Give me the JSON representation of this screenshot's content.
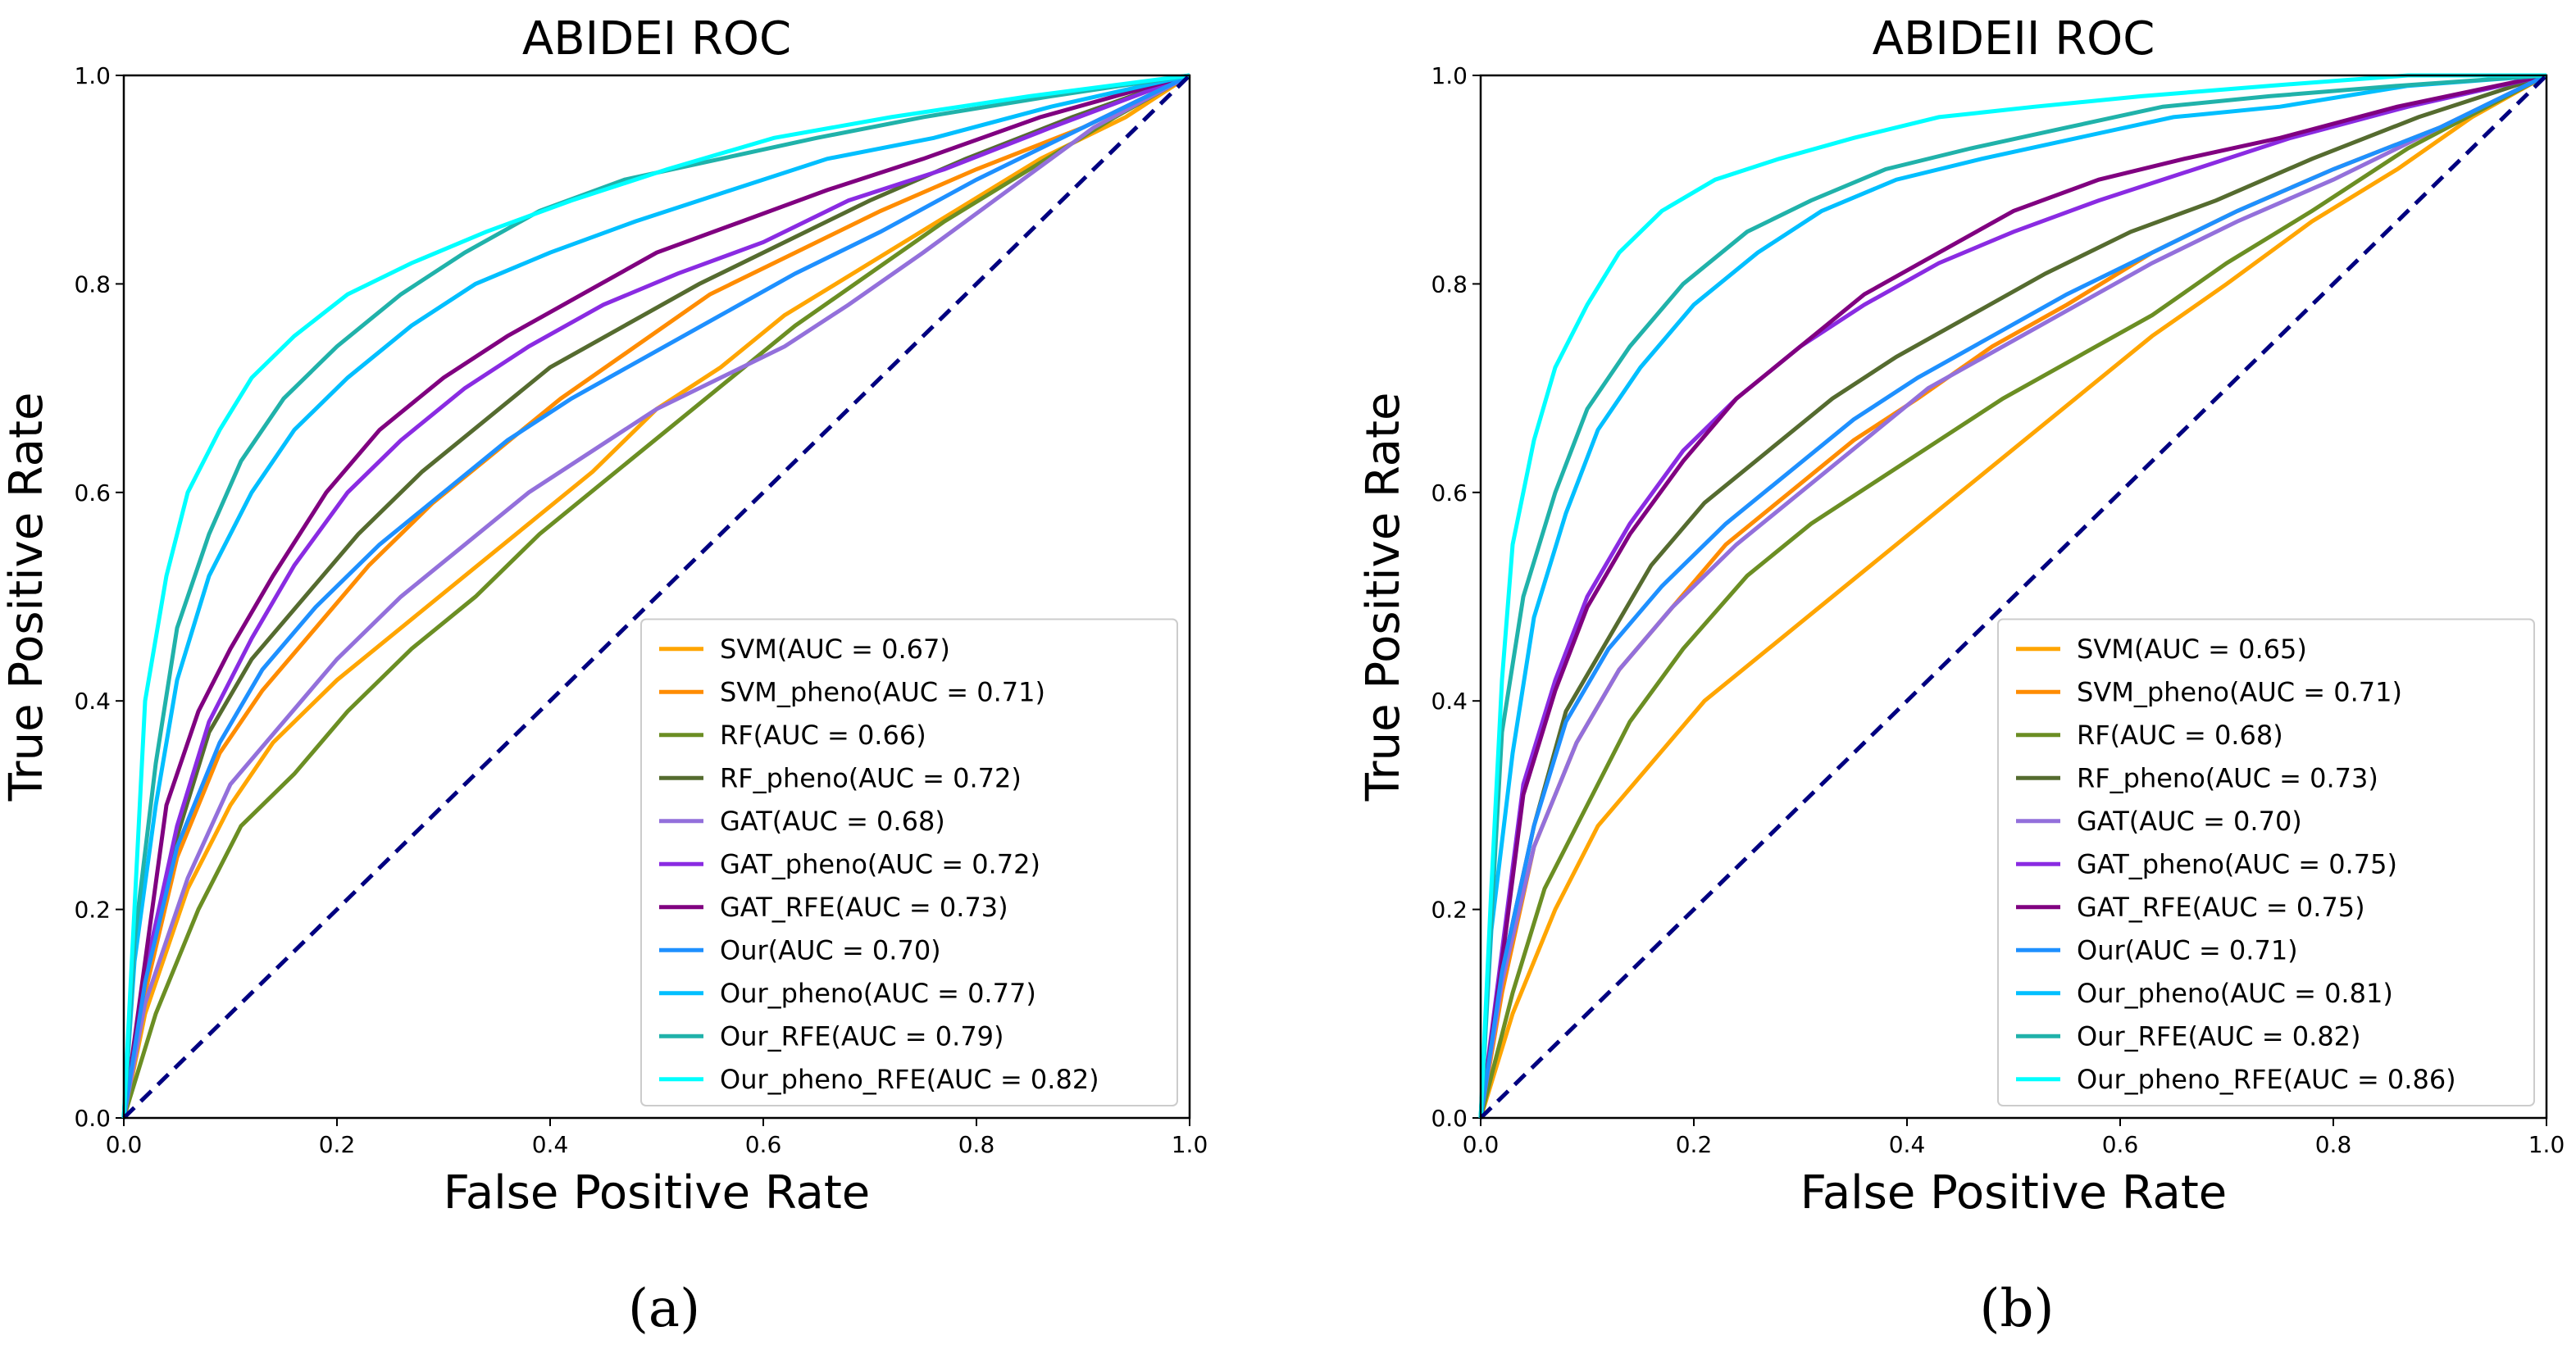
{
  "chart_data": [
    {
      "type": "line",
      "title": "ABIDEI ROC",
      "xlabel": "False Positive Rate",
      "ylabel": "True Positive Rate",
      "xlim": [
        0.0,
        1.0
      ],
      "ylim": [
        0.0,
        1.0
      ],
      "xticks": [
        "0.0",
        "0.2",
        "0.4",
        "0.6",
        "0.8",
        "1.0"
      ],
      "yticks": [
        "0.0",
        "0.2",
        "0.4",
        "0.6",
        "0.8",
        "1.0"
      ],
      "grid": false,
      "legend_position": "lower-right",
      "caption": "(a)",
      "chance_line": {
        "x": [
          0,
          1
        ],
        "y": [
          0,
          1
        ],
        "color": "#000080",
        "style": "dashed"
      },
      "series": [
        {
          "name": "SVM(AUC = 0.67)",
          "color": "#ffa500",
          "x": [
            0,
            0.02,
            0.06,
            0.1,
            0.14,
            0.2,
            0.26,
            0.32,
            0.38,
            0.44,
            0.5,
            0.56,
            0.62,
            0.7,
            0.78,
            0.86,
            0.94,
            1.0
          ],
          "y": [
            0,
            0.1,
            0.22,
            0.3,
            0.36,
            0.42,
            0.47,
            0.52,
            0.57,
            0.62,
            0.68,
            0.72,
            0.77,
            0.82,
            0.87,
            0.92,
            0.96,
            1.0
          ]
        },
        {
          "name": "SVM_pheno(AUC = 0.71)",
          "color": "#ff8c00",
          "x": [
            0,
            0.02,
            0.05,
            0.09,
            0.13,
            0.18,
            0.23,
            0.29,
            0.35,
            0.41,
            0.48,
            0.55,
            0.63,
            0.71,
            0.8,
            0.9,
            1.0
          ],
          "y": [
            0,
            0.12,
            0.25,
            0.35,
            0.41,
            0.47,
            0.53,
            0.59,
            0.64,
            0.69,
            0.74,
            0.79,
            0.83,
            0.87,
            0.91,
            0.95,
            1.0
          ]
        },
        {
          "name": "RF(AUC = 0.66)",
          "color": "#6b8e23",
          "x": [
            0,
            0.03,
            0.07,
            0.11,
            0.16,
            0.21,
            0.27,
            0.33,
            0.39,
            0.45,
            0.51,
            0.57,
            0.63,
            0.7,
            0.77,
            0.85,
            0.93,
            1.0
          ],
          "y": [
            0,
            0.1,
            0.2,
            0.28,
            0.33,
            0.39,
            0.45,
            0.5,
            0.56,
            0.61,
            0.66,
            0.71,
            0.76,
            0.81,
            0.86,
            0.91,
            0.96,
            1.0
          ]
        },
        {
          "name": "RF_pheno(AUC = 0.72)",
          "color": "#556b2f",
          "x": [
            0,
            0.02,
            0.05,
            0.08,
            0.12,
            0.17,
            0.22,
            0.28,
            0.34,
            0.4,
            0.47,
            0.54,
            0.62,
            0.7,
            0.79,
            0.89,
            1.0
          ],
          "y": [
            0,
            0.13,
            0.27,
            0.37,
            0.44,
            0.5,
            0.56,
            0.62,
            0.67,
            0.72,
            0.76,
            0.8,
            0.84,
            0.88,
            0.92,
            0.96,
            1.0
          ]
        },
        {
          "name": "GAT(AUC = 0.68)",
          "color": "#9370db",
          "x": [
            0,
            0.02,
            0.06,
            0.1,
            0.15,
            0.2,
            0.26,
            0.32,
            0.38,
            0.44,
            0.5,
            0.56,
            0.62,
            0.68,
            0.75,
            0.83,
            0.91,
            1.0
          ],
          "y": [
            0,
            0.11,
            0.23,
            0.32,
            0.38,
            0.44,
            0.5,
            0.55,
            0.6,
            0.64,
            0.68,
            0.71,
            0.74,
            0.78,
            0.83,
            0.89,
            0.95,
            1.0
          ]
        },
        {
          "name": "GAT_pheno(AUC = 0.72)",
          "color": "#8a2be2",
          "x": [
            0,
            0.02,
            0.05,
            0.08,
            0.12,
            0.16,
            0.21,
            0.26,
            0.32,
            0.38,
            0.45,
            0.52,
            0.6,
            0.68,
            0.77,
            0.87,
            1.0
          ],
          "y": [
            0,
            0.14,
            0.28,
            0.38,
            0.46,
            0.53,
            0.6,
            0.65,
            0.7,
            0.74,
            0.78,
            0.81,
            0.84,
            0.88,
            0.91,
            0.95,
            1.0
          ]
        },
        {
          "name": "GAT_RFE(AUC = 0.73)",
          "color": "#800080",
          "x": [
            0,
            0.02,
            0.04,
            0.07,
            0.1,
            0.14,
            0.19,
            0.24,
            0.3,
            0.36,
            0.43,
            0.5,
            0.58,
            0.66,
            0.75,
            0.86,
            1.0
          ],
          "y": [
            0,
            0.15,
            0.3,
            0.39,
            0.45,
            0.52,
            0.6,
            0.66,
            0.71,
            0.75,
            0.79,
            0.83,
            0.86,
            0.89,
            0.92,
            0.96,
            1.0
          ]
        },
        {
          "name": "Our(AUC = 0.70)",
          "color": "#1e90ff",
          "x": [
            0,
            0.02,
            0.05,
            0.09,
            0.13,
            0.18,
            0.24,
            0.3,
            0.36,
            0.42,
            0.49,
            0.56,
            0.63,
            0.71,
            0.8,
            0.9,
            1.0
          ],
          "y": [
            0,
            0.13,
            0.26,
            0.36,
            0.43,
            0.49,
            0.55,
            0.6,
            0.65,
            0.69,
            0.73,
            0.77,
            0.81,
            0.85,
            0.9,
            0.95,
            1.0
          ]
        },
        {
          "name": "Our_pheno(AUC = 0.77)",
          "color": "#00bfff",
          "x": [
            0,
            0.01,
            0.03,
            0.05,
            0.08,
            0.12,
            0.16,
            0.21,
            0.27,
            0.33,
            0.4,
            0.48,
            0.57,
            0.66,
            0.76,
            0.87,
            1.0
          ],
          "y": [
            0,
            0.15,
            0.3,
            0.42,
            0.52,
            0.6,
            0.66,
            0.71,
            0.76,
            0.8,
            0.83,
            0.86,
            0.89,
            0.92,
            0.94,
            0.97,
            1.0
          ]
        },
        {
          "name": "Our_RFE(AUC = 0.79)",
          "color": "#20b2aa",
          "x": [
            0,
            0.01,
            0.03,
            0.05,
            0.08,
            0.11,
            0.15,
            0.2,
            0.26,
            0.32,
            0.39,
            0.47,
            0.56,
            0.65,
            0.75,
            0.87,
            1.0
          ],
          "y": [
            0,
            0.17,
            0.34,
            0.47,
            0.56,
            0.63,
            0.69,
            0.74,
            0.79,
            0.83,
            0.87,
            0.9,
            0.92,
            0.94,
            0.96,
            0.98,
            1.0
          ]
        },
        {
          "name": "Our_pheno_RFE(AUC = 0.82)",
          "color": "#00ffff",
          "x": [
            0,
            0.01,
            0.02,
            0.04,
            0.06,
            0.09,
            0.12,
            0.16,
            0.21,
            0.27,
            0.34,
            0.42,
            0.51,
            0.61,
            0.72,
            0.85,
            1.0
          ],
          "y": [
            0,
            0.2,
            0.4,
            0.52,
            0.6,
            0.66,
            0.71,
            0.75,
            0.79,
            0.82,
            0.85,
            0.88,
            0.91,
            0.94,
            0.96,
            0.98,
            1.0
          ]
        }
      ]
    },
    {
      "type": "line",
      "title": "ABIDEII ROC",
      "xlabel": "False Positive Rate",
      "ylabel": "True Positive Rate",
      "xlim": [
        0.0,
        1.0
      ],
      "ylim": [
        0.0,
        1.0
      ],
      "xticks": [
        "0.0",
        "0.2",
        "0.4",
        "0.6",
        "0.8",
        "1.0"
      ],
      "yticks": [
        "0.0",
        "0.2",
        "0.4",
        "0.6",
        "0.8",
        "1.0"
      ],
      "grid": false,
      "legend_position": "lower-right",
      "caption": "(b)",
      "chance_line": {
        "x": [
          0,
          1
        ],
        "y": [
          0,
          1
        ],
        "color": "#000080",
        "style": "dashed"
      },
      "series": [
        {
          "name": "SVM(AUC = 0.65)",
          "color": "#ffa500",
          "x": [
            0,
            0.03,
            0.07,
            0.11,
            0.16,
            0.21,
            0.27,
            0.33,
            0.39,
            0.45,
            0.51,
            0.57,
            0.63,
            0.7,
            0.78,
            0.86,
            0.93,
            1.0
          ],
          "y": [
            0,
            0.1,
            0.2,
            0.28,
            0.34,
            0.4,
            0.45,
            0.5,
            0.55,
            0.6,
            0.65,
            0.7,
            0.75,
            0.8,
            0.86,
            0.91,
            0.96,
            1.0
          ]
        },
        {
          "name": "SVM_pheno(AUC = 0.71)",
          "color": "#ff8c00",
          "x": [
            0,
            0.02,
            0.05,
            0.09,
            0.13,
            0.18,
            0.23,
            0.29,
            0.35,
            0.41,
            0.48,
            0.55,
            0.63,
            0.71,
            0.8,
            0.9,
            1.0
          ],
          "y": [
            0,
            0.12,
            0.26,
            0.36,
            0.43,
            0.49,
            0.55,
            0.6,
            0.65,
            0.69,
            0.74,
            0.78,
            0.83,
            0.87,
            0.91,
            0.95,
            1.0
          ]
        },
        {
          "name": "RF(AUC = 0.68)",
          "color": "#6b8e23",
          "x": [
            0,
            0.03,
            0.06,
            0.1,
            0.14,
            0.19,
            0.25,
            0.31,
            0.37,
            0.43,
            0.49,
            0.56,
            0.63,
            0.7,
            0.78,
            0.87,
            1.0
          ],
          "y": [
            0,
            0.12,
            0.22,
            0.3,
            0.38,
            0.45,
            0.52,
            0.57,
            0.61,
            0.65,
            0.69,
            0.73,
            0.77,
            0.82,
            0.87,
            0.93,
            1.0
          ]
        },
        {
          "name": "RF_pheno(AUC = 0.73)",
          "color": "#556b2f",
          "x": [
            0,
            0.02,
            0.05,
            0.08,
            0.12,
            0.16,
            0.21,
            0.27,
            0.33,
            0.39,
            0.46,
            0.53,
            0.61,
            0.69,
            0.78,
            0.88,
            1.0
          ],
          "y": [
            0,
            0.14,
            0.28,
            0.39,
            0.46,
            0.53,
            0.59,
            0.64,
            0.69,
            0.73,
            0.77,
            0.81,
            0.85,
            0.88,
            0.92,
            0.96,
            1.0
          ]
        },
        {
          "name": "GAT(AUC = 0.70)",
          "color": "#9370db",
          "x": [
            0,
            0.02,
            0.05,
            0.09,
            0.13,
            0.18,
            0.24,
            0.3,
            0.36,
            0.42,
            0.49,
            0.56,
            0.63,
            0.71,
            0.8,
            0.9,
            1.0
          ],
          "y": [
            0,
            0.13,
            0.26,
            0.36,
            0.43,
            0.49,
            0.55,
            0.6,
            0.65,
            0.7,
            0.74,
            0.78,
            0.82,
            0.86,
            0.9,
            0.95,
            1.0
          ]
        },
        {
          "name": "GAT_pheno(AUC = 0.75)",
          "color": "#8a2be2",
          "x": [
            0,
            0.02,
            0.04,
            0.07,
            0.1,
            0.14,
            0.19,
            0.24,
            0.3,
            0.36,
            0.43,
            0.5,
            0.58,
            0.67,
            0.76,
            0.87,
            1.0
          ],
          "y": [
            0,
            0.16,
            0.32,
            0.42,
            0.5,
            0.57,
            0.64,
            0.69,
            0.74,
            0.78,
            0.82,
            0.85,
            0.88,
            0.91,
            0.94,
            0.97,
            1.0
          ]
        },
        {
          "name": "GAT_RFE(AUC = 0.75)",
          "color": "#800080",
          "x": [
            0,
            0.02,
            0.04,
            0.07,
            0.1,
            0.14,
            0.19,
            0.24,
            0.3,
            0.36,
            0.43,
            0.5,
            0.58,
            0.66,
            0.75,
            0.86,
            1.0
          ],
          "y": [
            0,
            0.15,
            0.31,
            0.41,
            0.49,
            0.56,
            0.63,
            0.69,
            0.74,
            0.79,
            0.83,
            0.87,
            0.9,
            0.92,
            0.94,
            0.97,
            1.0
          ]
        },
        {
          "name": "Our(AUC = 0.71)",
          "color": "#1e90ff",
          "x": [
            0,
            0.02,
            0.05,
            0.08,
            0.12,
            0.17,
            0.23,
            0.29,
            0.35,
            0.41,
            0.48,
            0.55,
            0.63,
            0.71,
            0.8,
            0.9,
            1.0
          ],
          "y": [
            0,
            0.14,
            0.28,
            0.38,
            0.45,
            0.51,
            0.57,
            0.62,
            0.67,
            0.71,
            0.75,
            0.79,
            0.83,
            0.87,
            0.91,
            0.95,
            1.0
          ]
        },
        {
          "name": "Our_pheno(AUC = 0.81)",
          "color": "#00bfff",
          "x": [
            0,
            0.01,
            0.03,
            0.05,
            0.08,
            0.11,
            0.15,
            0.2,
            0.26,
            0.32,
            0.39,
            0.47,
            0.56,
            0.65,
            0.75,
            0.87,
            1.0
          ],
          "y": [
            0,
            0.18,
            0.35,
            0.48,
            0.58,
            0.66,
            0.72,
            0.78,
            0.83,
            0.87,
            0.9,
            0.92,
            0.94,
            0.96,
            0.97,
            0.99,
            1.0
          ]
        },
        {
          "name": "Our_RFE(AUC = 0.82)",
          "color": "#20b2aa",
          "x": [
            0,
            0.01,
            0.02,
            0.04,
            0.07,
            0.1,
            0.14,
            0.19,
            0.25,
            0.31,
            0.38,
            0.46,
            0.55,
            0.64,
            0.74,
            0.86,
            1.0
          ],
          "y": [
            0,
            0.19,
            0.37,
            0.5,
            0.6,
            0.68,
            0.74,
            0.8,
            0.85,
            0.88,
            0.91,
            0.93,
            0.95,
            0.97,
            0.98,
            0.99,
            1.0
          ]
        },
        {
          "name": "Our_pheno_RFE(AUC = 0.86)",
          "color": "#00ffff",
          "x": [
            0,
            0.01,
            0.02,
            0.03,
            0.05,
            0.07,
            0.1,
            0.13,
            0.17,
            0.22,
            0.28,
            0.35,
            0.43,
            0.52,
            0.62,
            0.74,
            0.87,
            1.0
          ],
          "y": [
            0,
            0.22,
            0.42,
            0.55,
            0.65,
            0.72,
            0.78,
            0.83,
            0.87,
            0.9,
            0.92,
            0.94,
            0.96,
            0.97,
            0.98,
            0.99,
            1.0,
            1.0
          ]
        }
      ]
    }
  ]
}
